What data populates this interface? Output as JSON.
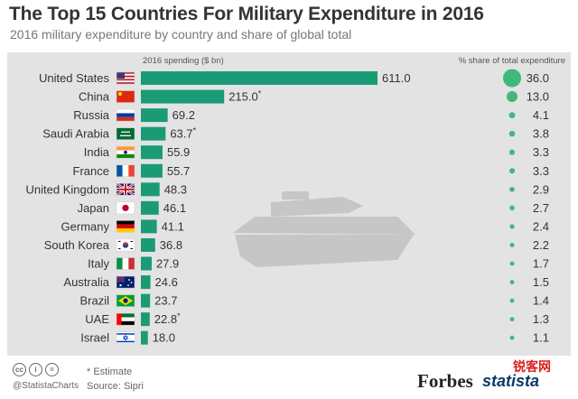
{
  "header": {
    "title": "The Top 15 Countries For Military Expenditure in 2016",
    "subtitle": "2016 military expenditure by country and share of global total"
  },
  "chart_data": {
    "type": "bar",
    "title": "The Top 15 Countries For Military Expenditure in 2016",
    "subtitle": "2016 military expenditure by country and share of global total",
    "spending_label": "2016 spending ($ bn)",
    "share_label": "% share of total expenditure",
    "categories": [
      "United States",
      "China",
      "Russia",
      "Saudi Arabia",
      "India",
      "France",
      "United Kingdom",
      "Japan",
      "Germany",
      "South Korea",
      "Italy",
      "Australia",
      "Brazil",
      "UAE",
      "Israel"
    ],
    "series": [
      {
        "name": "2016 spending ($ bn)",
        "values": [
          611.0,
          215.0,
          69.2,
          63.7,
          55.9,
          55.7,
          48.3,
          46.1,
          41.1,
          36.8,
          27.9,
          24.6,
          23.7,
          22.8,
          18.0
        ]
      },
      {
        "name": "% share of total expenditure",
        "values": [
          36.0,
          13.0,
          4.1,
          3.8,
          3.3,
          3.3,
          2.9,
          2.7,
          2.4,
          2.2,
          1.7,
          1.5,
          1.4,
          1.3,
          1.1
        ]
      }
    ],
    "spending_labels": [
      "611.0",
      "215.0*",
      "69.2",
      "63.7*",
      "55.9",
      "55.7",
      "48.3",
      "46.1",
      "41.1",
      "36.8",
      "27.9",
      "24.6",
      "23.7",
      "22.8*",
      "18.0"
    ],
    "share_labels": [
      "36.0",
      "13.0",
      "4.1",
      "3.8",
      "3.3",
      "3.3",
      "2.9",
      "2.7",
      "2.4",
      "2.2",
      "1.7",
      "1.5",
      "1.4",
      "1.3",
      "1.1"
    ],
    "flags": [
      "flag-us-icon",
      "flag-china-icon",
      "flag-russia-icon",
      "flag-saudi-arabia-icon",
      "flag-india-icon",
      "flag-france-icon",
      "flag-uk-icon",
      "flag-japan-icon",
      "flag-germany-icon",
      "flag-south-korea-icon",
      "flag-italy-icon",
      "flag-australia-icon",
      "flag-brazil-icon",
      "flag-uae-icon",
      "flag-israel-icon"
    ],
    "xlim": [
      0,
      611
    ],
    "colors": {
      "bar": "#1a9b76",
      "dot": "#3eb97a",
      "band": "#e3e3e3",
      "background_icon": "#c6c6c6"
    }
  },
  "footer": {
    "cc_badges": [
      "cc",
      "i",
      "="
    ],
    "handle": "@StatistaCharts",
    "estimate_note": "* Estimate",
    "source": "Source: Sipri",
    "forbes": "Forbes",
    "statista": "statista",
    "watermark": "锐客网"
  }
}
